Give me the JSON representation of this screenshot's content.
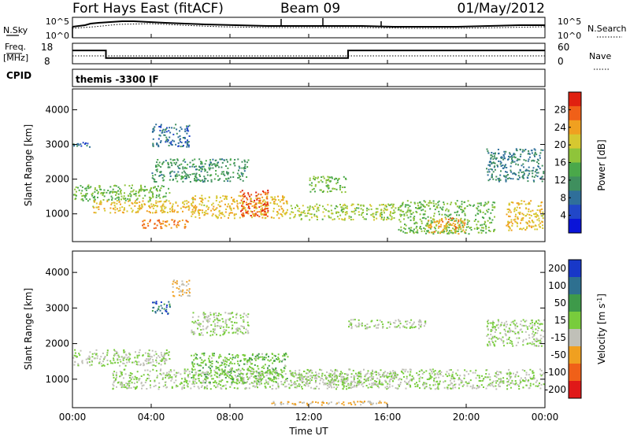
{
  "header": {
    "station": "Fort Hays East (fitACF)",
    "beam": "Beam 09",
    "date": "01/May/2012"
  },
  "noise_panel": {
    "left_label": "N.Sky",
    "right_label": "N.Search",
    "y_ticks": [
      "10^5",
      "10^0"
    ]
  },
  "freq_panel": {
    "left_label_1": "Freq.",
    "left_label_2": "[MHz]",
    "right_label": "Nave",
    "left_ticks": [
      "18",
      "8"
    ],
    "right_ticks": [
      "60",
      "0"
    ]
  },
  "cpid_panel": {
    "label": "CPID",
    "program": "themis -3300 IF"
  },
  "x_axis": {
    "title": "Time UT",
    "ticks": [
      "00:00",
      "04:00",
      "08:00",
      "12:00",
      "16:00",
      "20:00",
      "00:00"
    ]
  },
  "power_panel": {
    "ylabel": "Slant Range [km]",
    "y_ticks": [
      "1000",
      "2000",
      "3000",
      "4000"
    ],
    "colorbar_title": "Power [dB]",
    "colorbar_ticks": [
      "28",
      "24",
      "20",
      "16",
      "12",
      "8",
      "4"
    ],
    "colors": [
      "#0a14d8",
      "#2147c8",
      "#2f6f9a",
      "#3f8f5e",
      "#4aa84a",
      "#8fc43a",
      "#d6c830",
      "#f0a020",
      "#f06018",
      "#e02010"
    ]
  },
  "velocity_panel": {
    "ylabel": "Slant Range [km]",
    "y_ticks": [
      "1000",
      "2000",
      "3000",
      "4000"
    ],
    "colorbar_title": "Velocity [m s",
    "colorbar_title_sup": "-1",
    "colorbar_ticks": [
      "200",
      "100",
      "50",
      "15",
      "-15",
      "-50",
      "-100",
      "-200"
    ],
    "colors": [
      "#1838c8",
      "#2e7090",
      "#3e9a4a",
      "#78cc3c",
      "#c0c0b8",
      "#f0a020",
      "#f06018",
      "#e01818"
    ]
  },
  "chart_data": [
    {
      "type": "heatmap",
      "title": "Power",
      "xlabel": "Time UT",
      "ylabel": "Slant Range [km]",
      "xlim": [
        0,
        24
      ],
      "ylim": [
        200,
        4600
      ],
      "colorbar": "Power [dB]",
      "colorbar_range": [
        0,
        32
      ],
      "regions": [
        {
          "t0": 0.0,
          "t1": 5.0,
          "r0": 1350,
          "r1": 1850,
          "value": 16
        },
        {
          "t0": 1.0,
          "t1": 6.5,
          "r0": 1000,
          "r1": 1400,
          "value": 22
        },
        {
          "t0": 3.5,
          "t1": 6.0,
          "r0": 550,
          "r1": 850,
          "value": 26
        },
        {
          "t0": 6.0,
          "t1": 11.0,
          "r0": 850,
          "r1": 1550,
          "value": 22
        },
        {
          "t0": 8.5,
          "t1": 10.0,
          "r0": 900,
          "r1": 1700,
          "value": 28
        },
        {
          "t0": 11.0,
          "t1": 16.5,
          "r0": 800,
          "r1": 1300,
          "value": 18
        },
        {
          "t0": 16.5,
          "t1": 21.5,
          "r0": 400,
          "r1": 1400,
          "value": 16
        },
        {
          "t0": 18.0,
          "t1": 20.0,
          "r0": 400,
          "r1": 900,
          "value": 24
        },
        {
          "t0": 22.0,
          "t1": 24.0,
          "r0": 500,
          "r1": 1400,
          "value": 22
        },
        {
          "t0": 4.0,
          "t1": 9.0,
          "r0": 1900,
          "r1": 2600,
          "value": 12
        },
        {
          "t0": 4.0,
          "t1": 6.0,
          "r0": 2900,
          "r1": 3600,
          "value": 8
        },
        {
          "t0": 12.0,
          "t1": 14.0,
          "r0": 1600,
          "r1": 2100,
          "value": 16
        },
        {
          "t0": 21.0,
          "t1": 24.0,
          "r0": 1900,
          "r1": 2900,
          "value": 10
        },
        {
          "t0": 0.0,
          "t1": 1.0,
          "r0": 2900,
          "r1": 3100,
          "value": 8
        }
      ]
    },
    {
      "type": "heatmap",
      "title": "Velocity",
      "xlabel": "Time UT",
      "ylabel": "Slant Range [km]",
      "xlim": [
        0,
        24
      ],
      "ylim": [
        200,
        4600
      ],
      "colorbar": "Velocity [m s-1]",
      "colorbar_range": [
        -250,
        250
      ],
      "regions": [
        {
          "t0": 0.0,
          "t1": 5.0,
          "r0": 1350,
          "r1": 1850,
          "value": 0
        },
        {
          "t0": 2.0,
          "t1": 22.0,
          "r0": 700,
          "r1": 1300,
          "value": 0
        },
        {
          "t0": 6.0,
          "t1": 11.0,
          "r0": 850,
          "r1": 1750,
          "value": 40
        },
        {
          "t0": 11.0,
          "t1": 16.5,
          "r0": 800,
          "r1": 1200,
          "value": 0
        },
        {
          "t0": 4.0,
          "t1": 5.0,
          "r0": 2800,
          "r1": 3200,
          "value": 150
        },
        {
          "t0": 5.0,
          "t1": 6.0,
          "r0": 3300,
          "r1": 3800,
          "value": -60
        },
        {
          "t0": 6.0,
          "t1": 9.0,
          "r0": 2200,
          "r1": 2900,
          "value": 0
        },
        {
          "t0": 14.0,
          "t1": 18.0,
          "r0": 2400,
          "r1": 2700,
          "value": 0
        },
        {
          "t0": 22.0,
          "t1": 24.0,
          "r0": 700,
          "r1": 1300,
          "value": 0
        },
        {
          "t0": 21.0,
          "t1": 24.0,
          "r0": 1900,
          "r1": 2700,
          "value": 0
        },
        {
          "t0": 10.0,
          "t1": 16.0,
          "r0": 250,
          "r1": 400,
          "value": -60
        }
      ]
    },
    {
      "type": "line",
      "title": "Frequency",
      "xlabel": "Time UT",
      "ylabel": "Freq. [MHz]",
      "x": [
        0,
        1.7,
        1.7,
        14.0,
        14.0,
        24
      ],
      "y": [
        14.5,
        14.5,
        10.8,
        10.8,
        14.5,
        14.5
      ],
      "ylim": [
        8,
        18
      ]
    }
  ]
}
